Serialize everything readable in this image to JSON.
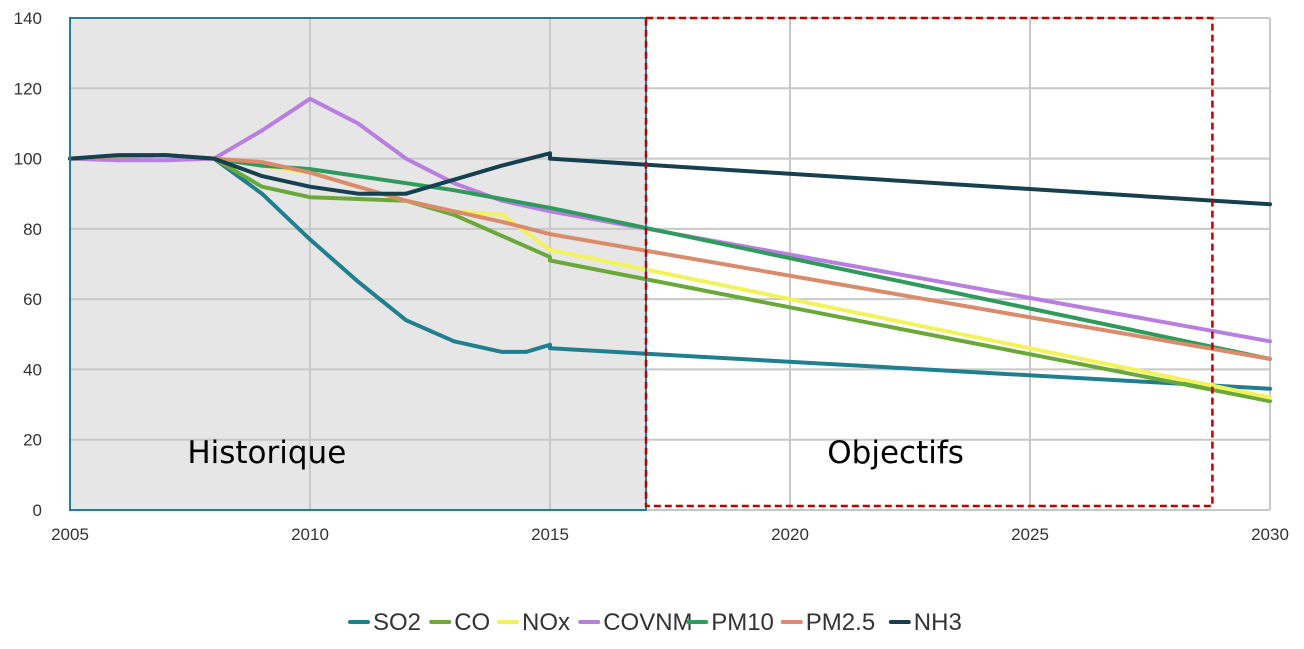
{
  "chart_data": {
    "type": "line",
    "title": "",
    "xlabel": "",
    "ylabel": "",
    "xlim": [
      2005,
      2030
    ],
    "ylim": [
      0,
      140
    ],
    "x_ticks": [
      "2005",
      "2010",
      "2015",
      "2020",
      "2025",
      "2030"
    ],
    "y_ticks": [
      "0",
      "20",
      "40",
      "60",
      "80",
      "100",
      "120",
      "140"
    ],
    "grid": true,
    "legend_position": "bottom",
    "regions": [
      {
        "label": "Historique",
        "x_range": [
          2005,
          2017
        ],
        "style": "shaded",
        "color": "#e6e6e6",
        "border_color": "#1f7fa0"
      },
      {
        "label": "Objectifs",
        "x_range": [
          2017,
          2028.8
        ],
        "style": "dashed-box",
        "color": "#c00000"
      }
    ],
    "series": [
      {
        "name": "SO2",
        "color": "#1f7f8f",
        "points": [
          [
            2005,
            100
          ],
          [
            2006,
            100.5
          ],
          [
            2007,
            101
          ],
          [
            2008,
            100
          ],
          [
            2009,
            90
          ],
          [
            2010,
            77
          ],
          [
            2011,
            65
          ],
          [
            2012,
            54
          ],
          [
            2013,
            48
          ],
          [
            2014,
            45
          ],
          [
            2014.5,
            45
          ],
          [
            2015,
            47
          ],
          [
            2015,
            46
          ],
          [
            2030,
            34.5
          ]
        ]
      },
      {
        "name": "CO",
        "color": "#6aa83a",
        "points": [
          [
            2005,
            100
          ],
          [
            2006,
            100.5
          ],
          [
            2007,
            101
          ],
          [
            2008,
            100
          ],
          [
            2009,
            92
          ],
          [
            2010,
            89
          ],
          [
            2011,
            88.5
          ],
          [
            2012,
            88
          ],
          [
            2013,
            84
          ],
          [
            2014,
            78
          ],
          [
            2015,
            72
          ],
          [
            2015,
            71
          ],
          [
            2030,
            31
          ]
        ]
      },
      {
        "name": "NOx",
        "color": "#f2f25c",
        "points": [
          [
            2005,
            100
          ],
          [
            2006,
            100.5
          ],
          [
            2007,
            101
          ],
          [
            2008,
            100
          ],
          [
            2009,
            98
          ],
          [
            2010,
            96
          ],
          [
            2011,
            92
          ],
          [
            2012,
            88
          ],
          [
            2013,
            85
          ],
          [
            2014,
            84
          ],
          [
            2015,
            74
          ],
          [
            2030,
            32
          ]
        ]
      },
      {
        "name": "COVNM",
        "color": "#b87ee0",
        "points": [
          [
            2005,
            100
          ],
          [
            2006,
            99.5
          ],
          [
            2007,
            99.5
          ],
          [
            2008,
            100
          ],
          [
            2009,
            108
          ],
          [
            2010,
            117
          ],
          [
            2011,
            110
          ],
          [
            2012,
            100
          ],
          [
            2013,
            93
          ],
          [
            2014,
            88
          ],
          [
            2015,
            85
          ],
          [
            2030,
            48
          ]
        ]
      },
      {
        "name": "PM10",
        "color": "#2e9a5c",
        "points": [
          [
            2005,
            100
          ],
          [
            2006,
            100.5
          ],
          [
            2007,
            101
          ],
          [
            2008,
            100
          ],
          [
            2009,
            98
          ],
          [
            2010,
            97
          ],
          [
            2011,
            95
          ],
          [
            2012,
            93
          ],
          [
            2013,
            91
          ],
          [
            2014,
            88.5
          ],
          [
            2015,
            86
          ],
          [
            2030,
            43
          ]
        ]
      },
      {
        "name": "PM2.5",
        "color": "#d98b6c",
        "points": [
          [
            2005,
            100
          ],
          [
            2006,
            100.5
          ],
          [
            2007,
            101
          ],
          [
            2008,
            100
          ],
          [
            2009,
            99
          ],
          [
            2010,
            96
          ],
          [
            2011,
            92
          ],
          [
            2012,
            88
          ],
          [
            2013,
            85
          ],
          [
            2014,
            82
          ],
          [
            2015,
            78.5
          ],
          [
            2030,
            43
          ]
        ]
      },
      {
        "name": "NH3",
        "color": "#163f4f",
        "points": [
          [
            2005,
            100
          ],
          [
            2006,
            101
          ],
          [
            2007,
            101
          ],
          [
            2008,
            100
          ],
          [
            2009,
            95
          ],
          [
            2010,
            92
          ],
          [
            2011,
            90
          ],
          [
            2012,
            90
          ],
          [
            2013,
            94
          ],
          [
            2014,
            98
          ],
          [
            2015,
            101.5
          ],
          [
            2015,
            100
          ],
          [
            2030,
            87
          ]
        ]
      }
    ]
  }
}
